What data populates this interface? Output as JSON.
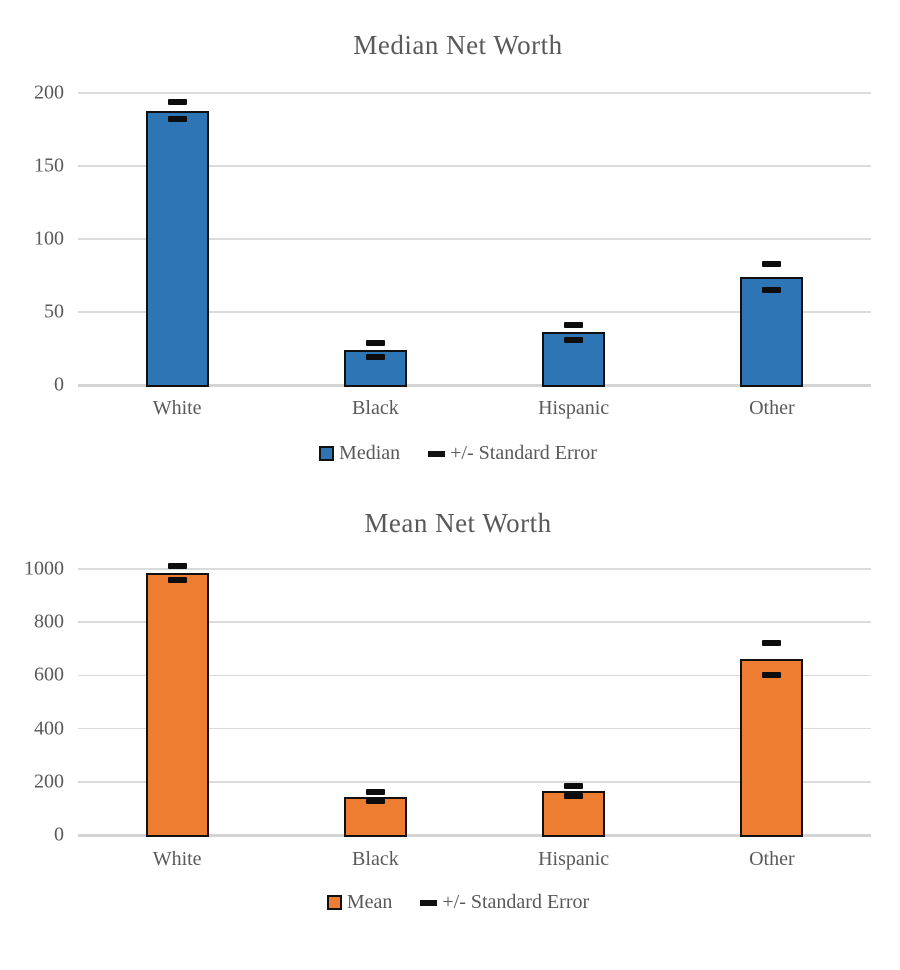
{
  "page": {
    "background": "#FFFFFF",
    "text_color": "#595959",
    "gridline_color": "#DBDBDB",
    "bar_border_color": "#101010",
    "error_dash_color": "#0D0D0D"
  },
  "chart_data": [
    {
      "type": "bar",
      "title": "Median Net Worth",
      "categories": [
        "White",
        "Black",
        "Hispanic",
        "Other"
      ],
      "series": [
        {
          "name": "Median",
          "color": "#2E75B6",
          "values": [
            188,
            24,
            36,
            74
          ]
        }
      ],
      "error_bars": {
        "name": "+/- Standard Error",
        "color": "#0D0D0D",
        "values": [
          6,
          5,
          5,
          9
        ]
      },
      "xlabel": "",
      "ylabel": "",
      "ylim": [
        0,
        200
      ],
      "yticks": [
        0,
        50,
        100,
        150,
        200
      ],
      "grid": true,
      "legend": {
        "position": "bottom",
        "series_label": "Median",
        "error_label": "+/- Standard Error"
      }
    },
    {
      "type": "bar",
      "title": "Mean Net Worth",
      "categories": [
        "White",
        "Black",
        "Hispanic",
        "Other"
      ],
      "series": [
        {
          "name": "Mean",
          "color": "#ED7D31",
          "values": [
            985,
            144,
            165,
            660
          ]
        }
      ],
      "error_bars": {
        "name": "+/- Standard Error",
        "color": "#0D0D0D",
        "values": [
          27,
          17,
          18,
          60
        ]
      },
      "xlabel": "",
      "ylabel": "",
      "ylim": [
        0,
        1000
      ],
      "yticks": [
        0,
        200,
        400,
        600,
        800,
        1000
      ],
      "grid": true,
      "legend": {
        "position": "bottom",
        "series_label": "Mean",
        "error_label": "+/- Standard Error"
      }
    }
  ]
}
